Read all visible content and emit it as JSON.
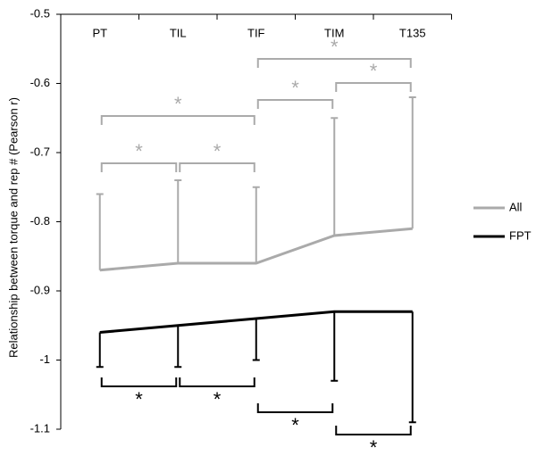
{
  "chart_data": {
    "type": "line",
    "y_label": "Relationship between torque and rep # (Pearson r)",
    "categories": [
      "PT",
      "TIL",
      "TIF",
      "TIM",
      "T135"
    ],
    "series": [
      {
        "name": "All",
        "color": "#aaaaaa",
        "values": [
          -0.87,
          -0.86,
          -0.86,
          -0.82,
          -0.81
        ],
        "errors": [
          0.11,
          0.12,
          0.11,
          0.17,
          0.19
        ],
        "error_direction": "up"
      },
      {
        "name": "FPT",
        "color": "#000000",
        "values": [
          -0.96,
          -0.95,
          -0.94,
          -0.93,
          -0.93
        ],
        "errors": [
          0.05,
          0.06,
          0.06,
          0.1,
          0.16
        ],
        "error_direction": "down"
      }
    ],
    "ylim": [
      -1.1,
      -0.5
    ],
    "yticks": [
      -0.5,
      -0.6,
      -0.7,
      -0.8,
      -0.9,
      -1,
      -1.1
    ],
    "legend": "right",
    "annotations": [
      "*",
      "*",
      "*",
      "*",
      "*",
      "*",
      "*",
      "*",
      "*",
      "*"
    ]
  }
}
